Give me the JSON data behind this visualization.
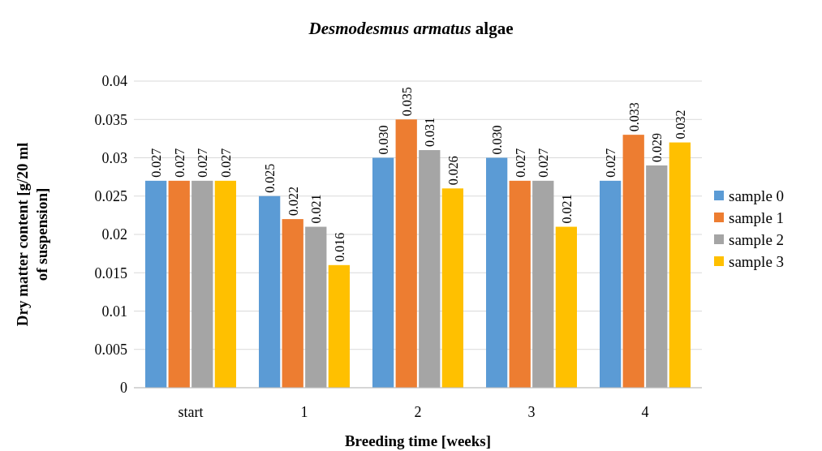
{
  "chart_data": {
    "type": "bar",
    "title": "Desmodesmus armatus algae",
    "xlabel": "Breeding time [weeks]",
    "ylabel": "Dry matter content [g/20 ml of suspension]",
    "categories": [
      "start",
      "1",
      "2",
      "3",
      "4"
    ],
    "series": [
      {
        "name": "sample 0",
        "color": "#5b9bd5",
        "values": [
          0.027,
          0.025,
          0.03,
          0.03,
          0.027
        ],
        "value_labels": [
          "0.027",
          "0.025",
          "0.030",
          "0.030",
          "0.027"
        ]
      },
      {
        "name": "sample 1",
        "color": "#ed7d31",
        "values": [
          0.027,
          0.022,
          0.035,
          0.027,
          0.033
        ],
        "value_labels": [
          "0.027",
          "0.022",
          "0.035",
          "0.027",
          "0.033"
        ]
      },
      {
        "name": "sample 2",
        "color": "#a5a5a5",
        "values": [
          0.027,
          0.021,
          0.031,
          0.027,
          0.029
        ],
        "value_labels": [
          "0.027",
          "0.021",
          "0.031",
          "0.027",
          "0.029"
        ]
      },
      {
        "name": "sample 3",
        "color": "#ffc000",
        "values": [
          0.027,
          0.016,
          0.026,
          0.021,
          0.032
        ],
        "value_labels": [
          "0.027",
          "0.016",
          "0.026",
          "0.021",
          "0.032"
        ]
      }
    ],
    "ylim": [
      0,
      0.04
    ],
    "yticks": [
      0,
      0.005,
      0.01,
      0.015,
      0.02,
      0.025,
      0.03,
      0.035,
      0.04
    ],
    "grid": "y",
    "legend": "right"
  }
}
